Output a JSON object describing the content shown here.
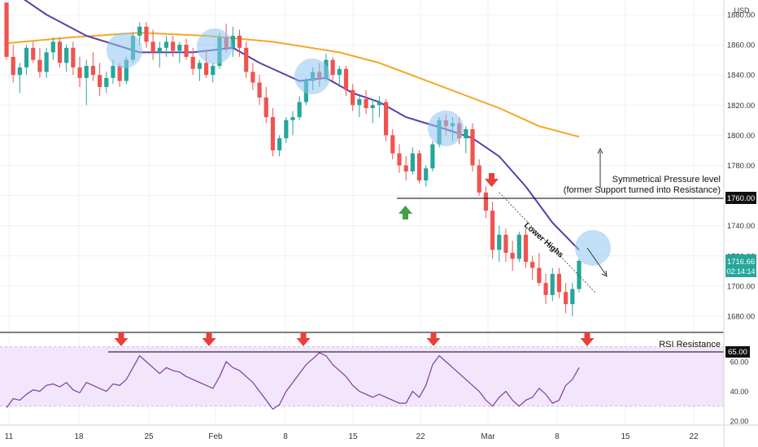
{
  "chart_data": {
    "type": "candlestick",
    "currency": "USD",
    "price_axis": {
      "ylim": [
        1670,
        1890
      ],
      "ticks": [
        "1880.00",
        "1860.00",
        "1840.00",
        "1820.00",
        "1800.00",
        "1780.00",
        "1760.00",
        "1740.00",
        "1720.00",
        "1700.00",
        "1680.00"
      ]
    },
    "rsi_axis": {
      "ylim": [
        18,
        70
      ],
      "ticks": [
        "60.00",
        "40.00",
        "20.00"
      ]
    },
    "x_ticks": [
      "11",
      "18",
      "25",
      "Feb",
      "8",
      "15",
      "22",
      "Mar",
      "8",
      "15",
      "22"
    ],
    "last_price": "1716.66",
    "countdown": "02:14:14",
    "resistance_price_label": "1760.00",
    "rsi_level_label": "65.00",
    "levels": {
      "resistance": 1760,
      "rsi_resistance": 65
    },
    "annotations": {
      "resistance_line1": "Symmetrical Pressure level",
      "resistance_line2": "(former Support turned into Resistance)",
      "lower_highs": "Lower Highs",
      "rsi_resistance": "RSI Resistance"
    },
    "colors": {
      "up": "#26a69a",
      "down": "#ef5350",
      "ma_slow": "#f5a623",
      "ma_fast": "#5b3ea8",
      "rsi": "#7b3fa0",
      "rsi_band": "#f3e5fb",
      "highlight": "#8ec4f0",
      "arrow_down": "#e8403a",
      "arrow_up": "#43a047"
    },
    "candles": [
      [
        1888,
        1888,
        1850,
        1852
      ],
      [
        1852,
        1860,
        1835,
        1840
      ],
      [
        1840,
        1848,
        1828,
        1845
      ],
      [
        1845,
        1860,
        1840,
        1858
      ],
      [
        1858,
        1862,
        1848,
        1850
      ],
      [
        1850,
        1858,
        1838,
        1842
      ],
      [
        1842,
        1858,
        1838,
        1855
      ],
      [
        1855,
        1865,
        1850,
        1862
      ],
      [
        1862,
        1865,
        1845,
        1848
      ],
      [
        1848,
        1860,
        1842,
        1858
      ],
      [
        1858,
        1862,
        1840,
        1845
      ],
      [
        1845,
        1852,
        1832,
        1838
      ],
      [
        1838,
        1850,
        1820,
        1846
      ],
      [
        1846,
        1855,
        1836,
        1840
      ],
      [
        1840,
        1848,
        1826,
        1832
      ],
      [
        1832,
        1842,
        1828,
        1838
      ],
      [
        1838,
        1850,
        1834,
        1846
      ],
      [
        1846,
        1848,
        1832,
        1836
      ],
      [
        1836,
        1852,
        1834,
        1850
      ],
      [
        1850,
        1868,
        1848,
        1866
      ],
      [
        1866,
        1875,
        1860,
        1872
      ],
      [
        1872,
        1875,
        1858,
        1862
      ],
      [
        1862,
        1870,
        1850,
        1855
      ],
      [
        1855,
        1862,
        1845,
        1858
      ],
      [
        1858,
        1866,
        1852,
        1862
      ],
      [
        1862,
        1866,
        1852,
        1856
      ],
      [
        1856,
        1862,
        1848,
        1860
      ],
      [
        1860,
        1864,
        1850,
        1852
      ],
      [
        1852,
        1858,
        1840,
        1844
      ],
      [
        1844,
        1850,
        1836,
        1848
      ],
      [
        1848,
        1856,
        1838,
        1840
      ],
      [
        1840,
        1848,
        1835,
        1846
      ],
      [
        1846,
        1868,
        1844,
        1865
      ],
      [
        1865,
        1874,
        1855,
        1858
      ],
      [
        1858,
        1872,
        1852,
        1866
      ],
      [
        1866,
        1870,
        1852,
        1858
      ],
      [
        1858,
        1862,
        1838,
        1842
      ],
      [
        1842,
        1848,
        1830,
        1835
      ],
      [
        1835,
        1840,
        1820,
        1825
      ],
      [
        1825,
        1832,
        1808,
        1812
      ],
      [
        1812,
        1818,
        1786,
        1790
      ],
      [
        1790,
        1800,
        1786,
        1798
      ],
      [
        1798,
        1812,
        1795,
        1810
      ],
      [
        1810,
        1816,
        1800,
        1812
      ],
      [
        1812,
        1826,
        1810,
        1822
      ],
      [
        1822,
        1838,
        1820,
        1836
      ],
      [
        1836,
        1845,
        1830,
        1842
      ],
      [
        1842,
        1848,
        1832,
        1838
      ],
      [
        1838,
        1854,
        1836,
        1850
      ],
      [
        1850,
        1852,
        1836,
        1840
      ],
      [
        1840,
        1846,
        1832,
        1844
      ],
      [
        1844,
        1846,
        1826,
        1830
      ],
      [
        1830,
        1834,
        1816,
        1820
      ],
      [
        1820,
        1826,
        1812,
        1824
      ],
      [
        1824,
        1830,
        1814,
        1818
      ],
      [
        1818,
        1824,
        1808,
        1820
      ],
      [
        1820,
        1826,
        1812,
        1822
      ],
      [
        1822,
        1824,
        1796,
        1800
      ],
      [
        1800,
        1804,
        1784,
        1788
      ],
      [
        1788,
        1794,
        1775,
        1780
      ],
      [
        1780,
        1786,
        1770,
        1776
      ],
      [
        1776,
        1792,
        1774,
        1788
      ],
      [
        1788,
        1790,
        1768,
        1770
      ],
      [
        1770,
        1780,
        1766,
        1778
      ],
      [
        1778,
        1796,
        1776,
        1794
      ],
      [
        1794,
        1812,
        1792,
        1810
      ],
      [
        1810,
        1814,
        1800,
        1806
      ],
      [
        1806,
        1812,
        1796,
        1808
      ],
      [
        1808,
        1812,
        1794,
        1798
      ],
      [
        1798,
        1806,
        1788,
        1804
      ],
      [
        1804,
        1808,
        1776,
        1780
      ],
      [
        1780,
        1784,
        1760,
        1762
      ],
      [
        1762,
        1766,
        1745,
        1750
      ],
      [
        1750,
        1756,
        1718,
        1724
      ],
      [
        1724,
        1740,
        1716,
        1734
      ],
      [
        1734,
        1738,
        1716,
        1722
      ],
      [
        1722,
        1730,
        1710,
        1718
      ],
      [
        1718,
        1736,
        1716,
        1734
      ],
      [
        1734,
        1738,
        1712,
        1716
      ],
      [
        1716,
        1720,
        1704,
        1712
      ],
      [
        1712,
        1722,
        1700,
        1702
      ],
      [
        1702,
        1708,
        1688,
        1694
      ],
      [
        1694,
        1712,
        1690,
        1708
      ],
      [
        1708,
        1712,
        1692,
        1696
      ],
      [
        1696,
        1702,
        1682,
        1688
      ],
      [
        1688,
        1702,
        1680,
        1698
      ],
      [
        1698,
        1718,
        1696,
        1716.66
      ]
    ],
    "ma_fast": [
      [
        0,
        1898
      ],
      [
        6,
        1880
      ],
      [
        12,
        1866
      ],
      [
        20,
        1855
      ],
      [
        28,
        1855
      ],
      [
        34,
        1858
      ],
      [
        38,
        1848
      ],
      [
        44,
        1836
      ],
      [
        48,
        1838
      ],
      [
        52,
        1828
      ],
      [
        56,
        1822
      ],
      [
        60,
        1812
      ],
      [
        66,
        1804
      ],
      [
        70,
        1798
      ],
      [
        74,
        1786
      ],
      [
        78,
        1766
      ],
      [
        82,
        1742
      ],
      [
        86,
        1724
      ]
    ],
    "ma_slow": [
      [
        0,
        1861
      ],
      [
        10,
        1865
      ],
      [
        20,
        1868
      ],
      [
        30,
        1866
      ],
      [
        40,
        1862
      ],
      [
        50,
        1855
      ],
      [
        56,
        1848
      ],
      [
        62,
        1838
      ],
      [
        68,
        1828
      ],
      [
        74,
        1818
      ],
      [
        80,
        1806
      ],
      [
        86,
        1799
      ]
    ],
    "rsi": [
      29,
      35,
      34,
      38,
      41,
      40,
      44,
      45,
      43,
      46,
      41,
      39,
      46,
      44,
      42,
      40,
      45,
      44,
      48,
      56,
      64,
      60,
      56,
      52,
      56,
      54,
      53,
      50,
      48,
      46,
      44,
      42,
      50,
      60,
      56,
      54,
      50,
      46,
      40,
      34,
      28,
      31,
      40,
      46,
      52,
      58,
      62,
      66,
      64,
      58,
      54,
      50,
      44,
      40,
      38,
      36,
      38,
      36,
      34,
      32,
      32,
      40,
      36,
      44,
      58,
      64,
      60,
      56,
      52,
      48,
      44,
      40,
      34,
      30,
      36,
      40,
      34,
      30,
      34,
      36,
      42,
      38,
      32,
      34,
      44,
      48,
      56
    ],
    "lower_highs_trendline": [
      [
        74,
        1762
      ],
      [
        86,
        1700
      ]
    ],
    "rsi_peaks": [
      20,
      33,
      47,
      64,
      87
    ]
  }
}
